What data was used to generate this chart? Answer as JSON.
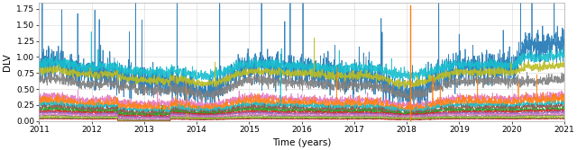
{
  "xlabel": "Time (years)",
  "ylabel": "DLV",
  "xlim": [
    2011.0,
    2021.0
  ],
  "ylim": [
    0.0,
    1.85
  ],
  "yticks": [
    0.0,
    0.25,
    0.5,
    0.75,
    1.0,
    1.25,
    1.5,
    1.75
  ],
  "xticks": [
    2011,
    2012,
    2013,
    2014,
    2015,
    2016,
    2017,
    2018,
    2019,
    2020,
    2021
  ],
  "n_points": 2600,
  "seed": 7,
  "line_configs": [
    {
      "color": "#1f77b4",
      "base": 0.7,
      "trend_2020": 0.3,
      "amp1": 0.15,
      "amp2": 0.08,
      "noise": 0.12,
      "spike_prob": 0.018,
      "spike_height": 0.55,
      "lw": 0.55
    },
    {
      "color": "#17becf",
      "base": 0.82,
      "trend_2020": 0.12,
      "amp1": 0.06,
      "amp2": 0.04,
      "noise": 0.04,
      "spike_prob": 0.003,
      "spike_height": 0.15,
      "lw": 0.7
    },
    {
      "color": "#bcbd22",
      "base": 0.7,
      "trend_2020": 0.1,
      "amp1": 0.07,
      "amp2": 0.04,
      "noise": 0.03,
      "spike_prob": 0.002,
      "spike_height": 0.12,
      "lw": 0.7
    },
    {
      "color": "#7f7f7f",
      "base": 0.55,
      "trend_2020": 0.05,
      "amp1": 0.08,
      "amp2": 0.05,
      "noise": 0.04,
      "spike_prob": 0.002,
      "spike_height": 0.1,
      "lw": 0.6
    },
    {
      "color": "#e377c2",
      "base": 0.32,
      "trend_2020": 0.04,
      "amp1": 0.04,
      "amp2": 0.03,
      "noise": 0.03,
      "spike_prob": 0.003,
      "spike_height": 0.08,
      "lw": 0.55
    },
    {
      "color": "#ff7f0e",
      "base": 0.26,
      "trend_2020": 0.05,
      "amp1": 0.04,
      "amp2": 0.03,
      "noise": 0.04,
      "spike_prob": 0.006,
      "spike_height": 0.2,
      "lw": 0.55
    },
    {
      "color": "#17becf",
      "base": 0.22,
      "trend_2020": 0.03,
      "amp1": 0.03,
      "amp2": 0.02,
      "noise": 0.02,
      "spike_prob": 0.002,
      "spike_height": 0.06,
      "lw": 0.5
    },
    {
      "color": "#8c564b",
      "base": 0.18,
      "trend_2020": 0.03,
      "amp1": 0.03,
      "amp2": 0.02,
      "noise": 0.02,
      "spike_prob": 0.001,
      "spike_height": 0.06,
      "lw": 0.5
    },
    {
      "color": "#2ca02c",
      "base": 0.155,
      "trend_2020": 0.02,
      "amp1": 0.02,
      "amp2": 0.015,
      "noise": 0.015,
      "spike_prob": 0.001,
      "spike_height": 0.05,
      "lw": 0.5
    },
    {
      "color": "#d62728",
      "base": 0.13,
      "trend_2020": 0.02,
      "amp1": 0.015,
      "amp2": 0.01,
      "noise": 0.012,
      "spike_prob": 0.001,
      "spike_height": 0.04,
      "lw": 0.5
    },
    {
      "color": "#9467bd",
      "base": 0.11,
      "trend_2020": 0.015,
      "amp1": 0.012,
      "amp2": 0.01,
      "noise": 0.01,
      "spike_prob": 0.001,
      "spike_height": 0.03,
      "lw": 0.5
    },
    {
      "color": "#e377c2",
      "base": 0.09,
      "trend_2020": 0.01,
      "amp1": 0.01,
      "amp2": 0.008,
      "noise": 0.008,
      "spike_prob": 0.001,
      "spike_height": 0.03,
      "lw": 0.5
    },
    {
      "color": "#7f7f7f",
      "base": 0.07,
      "trend_2020": 0.01,
      "amp1": 0.008,
      "amp2": 0.006,
      "noise": 0.006,
      "spike_prob": 0.001,
      "spike_height": 0.02,
      "lw": 0.5
    },
    {
      "color": "#bcbd22",
      "base": 0.055,
      "trend_2020": 0.008,
      "amp1": 0.006,
      "amp2": 0.005,
      "noise": 0.005,
      "spike_prob": 0.001,
      "spike_height": 0.02,
      "lw": 0.5
    },
    {
      "color": "#2ca02c",
      "base": 0.04,
      "trend_2020": 0.005,
      "amp1": 0.005,
      "amp2": 0.004,
      "noise": 0.004,
      "spike_prob": 0.0,
      "spike_height": 0.0,
      "lw": 0.5
    },
    {
      "color": "#d62728",
      "base": 0.03,
      "trend_2020": 0.004,
      "amp1": 0.004,
      "amp2": 0.003,
      "noise": 0.003,
      "spike_prob": 0.0,
      "spike_height": 0.0,
      "lw": 0.5
    }
  ],
  "orange_spike_t": 2018.06,
  "orange_spike_val": 1.81,
  "orange_spike_color": "#ff7f0e",
  "background_color": "#ffffff",
  "grid_color": "#cccccc",
  "tick_fontsize": 6.5,
  "label_fontsize": 7.5
}
